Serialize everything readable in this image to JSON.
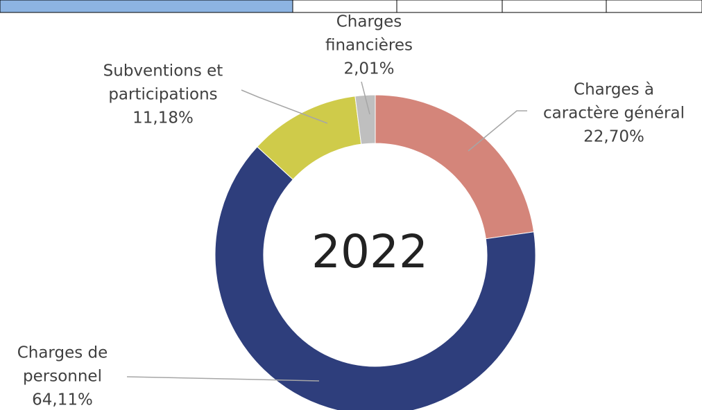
{
  "chart_data": {
    "type": "donut",
    "center_label": "2022",
    "categories": [
      [
        "Charges à",
        "caractère général"
      ],
      [
        "Charges de",
        "personnel"
      ],
      [
        "Subventions et",
        "participations"
      ],
      [
        "Charges",
        "financières"
      ]
    ],
    "values": [
      22.7,
      64.11,
      11.18,
      2.01
    ],
    "value_labels": [
      "22,70%",
      "64,11%",
      "11,18%",
      "2,01%"
    ],
    "colors": [
      "#d4857a",
      "#2e3e7c",
      "#cfcb4a",
      "#bfbfbf"
    ]
  }
}
